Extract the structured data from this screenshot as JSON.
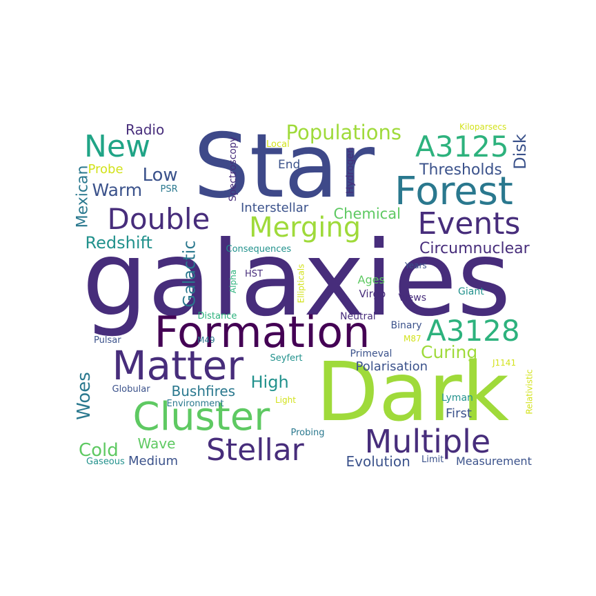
{
  "palette": {
    "navy": "#3e4989",
    "purple": "#472d7b",
    "dark_purple": "#440154",
    "teal": "#2a788e",
    "cyan": "#21918c",
    "green": "#2db27d",
    "lime": "#9fda3a",
    "yellow": "#d2e21b",
    "blue": "#3b528b",
    "sea": "#20a486",
    "light_green": "#5ec962"
  },
  "words": [
    {
      "text": "galaxies",
      "color": "#472d7b"
    },
    {
      "text": "Star",
      "color": "#3e4989"
    },
    {
      "text": "Dark",
      "color": "#9fda3a"
    },
    {
      "text": "Formation",
      "color": "#440154"
    },
    {
      "text": "Matter",
      "color": "#472d7b"
    },
    {
      "text": "Cluster",
      "color": "#5ec962"
    },
    {
      "text": "Forest",
      "color": "#2a788e"
    },
    {
      "text": "Multiple",
      "color": "#472d7b"
    },
    {
      "text": "Stellar",
      "color": "#472d7b"
    },
    {
      "text": "Events",
      "color": "#472d7b"
    },
    {
      "text": "Merging",
      "color": "#9fda3a"
    },
    {
      "text": "Double",
      "color": "#472d7b"
    },
    {
      "text": "A3125",
      "color": "#2db27d"
    },
    {
      "text": "A3128",
      "color": "#2db27d"
    },
    {
      "text": "New",
      "color": "#20a486"
    },
    {
      "text": "Populations",
      "color": "#9fda3a"
    },
    {
      "text": "Thresholds",
      "color": "#3b528b"
    },
    {
      "text": "Disk",
      "color": "#3b528b"
    },
    {
      "text": "Low",
      "color": "#3b528b"
    },
    {
      "text": "Warm",
      "color": "#3b528b"
    },
    {
      "text": "Radio",
      "color": "#472d7b"
    },
    {
      "text": "End",
      "color": "#3b528b"
    },
    {
      "text": "Mexican",
      "color": "#2a788e"
    },
    {
      "text": "Probe",
      "color": "#d2e21b"
    },
    {
      "text": "PSR",
      "color": "#2a788e"
    },
    {
      "text": "Spectroscopy",
      "color": "#472d7b"
    },
    {
      "text": "Local",
      "color": "#d2e21b"
    },
    {
      "text": "Hydrogen",
      "color": "#472d7b"
    },
    {
      "text": "Kiloparsecs",
      "color": "#d2e21b"
    },
    {
      "text": "Interstellar",
      "color": "#3b528b"
    },
    {
      "text": "Chemical",
      "color": "#5ec962"
    },
    {
      "text": "Redshift",
      "color": "#21918c"
    },
    {
      "text": "Galactic",
      "color": "#2a788e"
    },
    {
      "text": "Circumnuclear",
      "color": "#472d7b"
    },
    {
      "text": "Consequences",
      "color": "#21918c"
    },
    {
      "text": "Years",
      "color": "#3b528b"
    },
    {
      "text": "Alpha",
      "color": "#2db27d"
    },
    {
      "text": "HST",
      "color": "#472d7b"
    },
    {
      "text": "Ellipticals",
      "color": "#d2e21b"
    },
    {
      "text": "Ages",
      "color": "#5ec962"
    },
    {
      "text": "Virgo",
      "color": "#472d7b"
    },
    {
      "text": "Views",
      "color": "#472d7b"
    },
    {
      "text": "Giant",
      "color": "#21918c"
    },
    {
      "text": "Distance",
      "color": "#2db27d"
    },
    {
      "text": "Neutral",
      "color": "#472d7b"
    },
    {
      "text": "Binary",
      "color": "#3b528b"
    },
    {
      "text": "M87",
      "color": "#d2e21b"
    },
    {
      "text": "Pulsar",
      "color": "#3b528b"
    },
    {
      "text": "M49",
      "color": "#2a788e"
    },
    {
      "text": "Curing",
      "color": "#9fda3a"
    },
    {
      "text": "Primeval",
      "color": "#3b528b"
    },
    {
      "text": "Seyfert",
      "color": "#21918c"
    },
    {
      "text": "Polarisation",
      "color": "#3b528b"
    },
    {
      "text": "J1141",
      "color": "#d2e21b"
    },
    {
      "text": "Relativistic",
      "color": "#d2e21b"
    },
    {
      "text": "Woes",
      "color": "#2a788e"
    },
    {
      "text": "Globular",
      "color": "#3b528b"
    },
    {
      "text": "Bushfires",
      "color": "#2a788e"
    },
    {
      "text": "High",
      "color": "#21918c"
    },
    {
      "text": "Environment",
      "color": "#2a788e"
    },
    {
      "text": "Light",
      "color": "#d2e21b"
    },
    {
      "text": "Lyman",
      "color": "#21918c"
    },
    {
      "text": "First",
      "color": "#3b528b"
    },
    {
      "text": "Cold",
      "color": "#5ec962"
    },
    {
      "text": "Wave",
      "color": "#5ec962"
    },
    {
      "text": "Probing",
      "color": "#2a788e"
    },
    {
      "text": "Gaseous",
      "color": "#21918c"
    },
    {
      "text": "Medium",
      "color": "#3b528b"
    },
    {
      "text": "Evolution",
      "color": "#3b528b"
    },
    {
      "text": "Limit",
      "color": "#3b528b"
    },
    {
      "text": "Measurement",
      "color": "#3b528b"
    }
  ]
}
